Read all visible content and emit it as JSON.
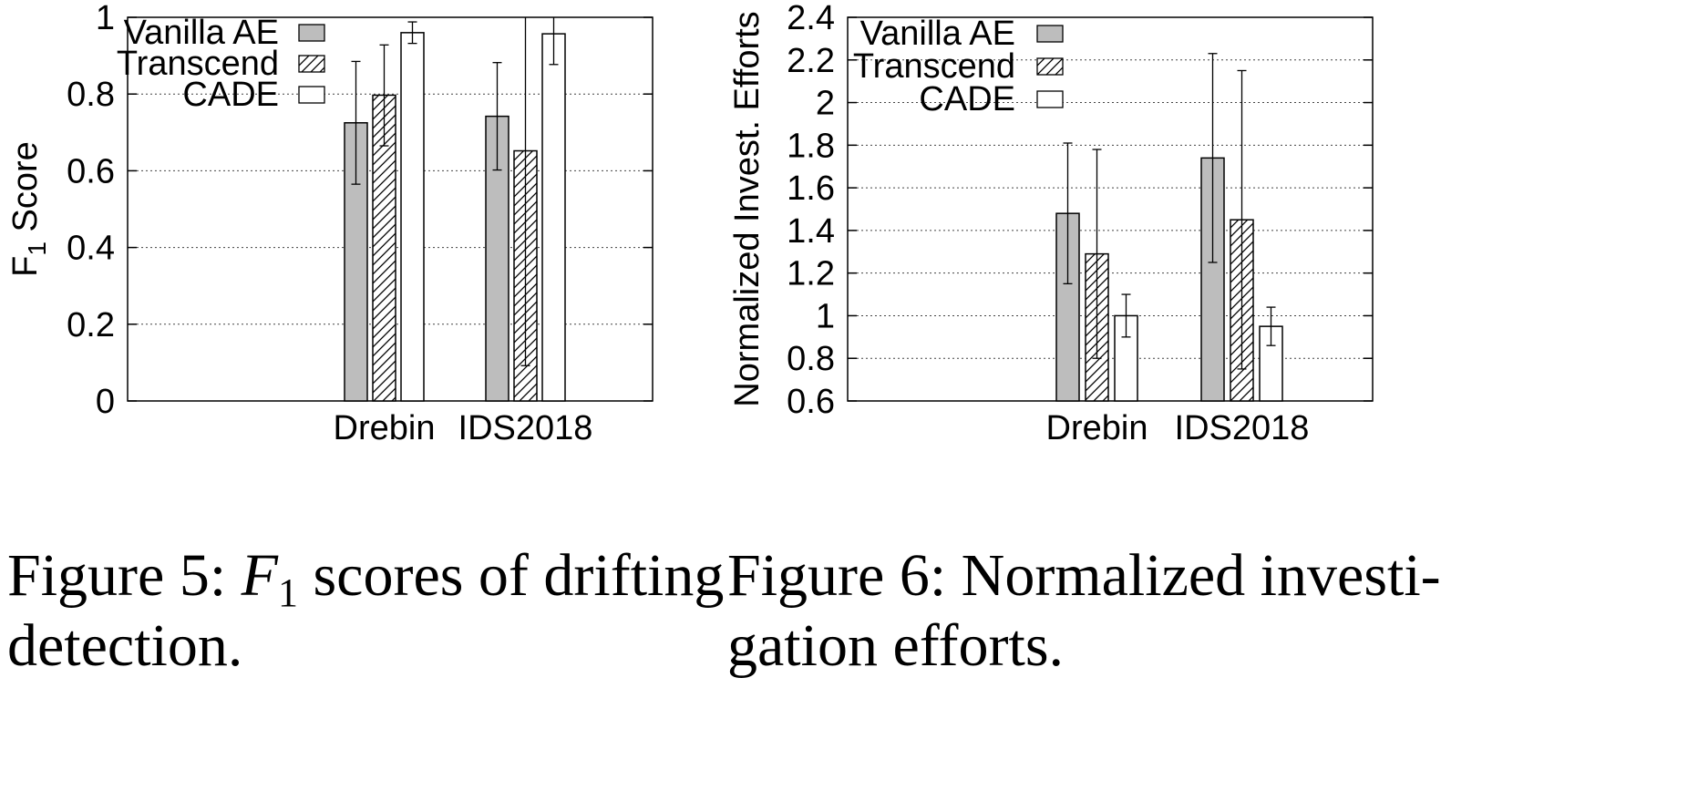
{
  "chart_data": [
    {
      "type": "bar",
      "ylabel_main": "F",
      "ylabel_sub": "1",
      "ylabel_rest": " Score",
      "categories": [
        "Drebin",
        "IDS2018"
      ],
      "ylim": [
        0,
        1
      ],
      "yticks": [
        0,
        0.2,
        0.4,
        0.6,
        0.8,
        1
      ],
      "ytick_labels": [
        "0",
        "0.2",
        "0.4",
        "0.6",
        "0.8",
        "1"
      ],
      "grid": true,
      "legend_position": "top-left",
      "series": [
        {
          "name": "Vanilla AE",
          "pattern": "gray",
          "values": [
            0.725,
            0.742
          ],
          "err_low": [
            0.565,
            0.602
          ],
          "err_high": [
            0.885,
            0.882
          ]
        },
        {
          "name": "Transcend",
          "pattern": "hatch",
          "values": [
            0.797,
            0.652
          ],
          "err_low": [
            0.665,
            0.092
          ],
          "err_high": [
            0.928,
            1.0
          ]
        },
        {
          "name": "CADE",
          "pattern": "white",
          "values": [
            0.96,
            0.957
          ],
          "err_low": [
            0.932,
            0.877
          ],
          "err_high": [
            0.988,
            1.0
          ]
        }
      ]
    },
    {
      "type": "bar",
      "ylabel": "Normalized Invest. Efforts",
      "categories": [
        "Drebin",
        "IDS2018"
      ],
      "ylim": [
        0.6,
        2.4
      ],
      "yticks": [
        0.6,
        0.8,
        1.0,
        1.2,
        1.4,
        1.6,
        1.8,
        2.0,
        2.2,
        2.4
      ],
      "ytick_labels": [
        "0.6",
        "0.8",
        "1",
        "1.2",
        "1.4",
        "1.6",
        "1.8",
        "2",
        "2.2",
        "2.4"
      ],
      "grid": true,
      "legend_position": "top-left",
      "series": [
        {
          "name": "Vanilla AE",
          "pattern": "gray",
          "values": [
            1.48,
            1.74
          ],
          "err_low": [
            1.15,
            1.25
          ],
          "err_high": [
            1.81,
            2.23
          ]
        },
        {
          "name": "Transcend",
          "pattern": "hatch",
          "values": [
            1.29,
            1.45
          ],
          "err_low": [
            0.8,
            0.75
          ],
          "err_high": [
            1.78,
            2.15
          ]
        },
        {
          "name": "CADE",
          "pattern": "white",
          "values": [
            1.0,
            0.95
          ],
          "err_low": [
            0.9,
            0.86
          ],
          "err_high": [
            1.1,
            1.04
          ]
        }
      ]
    }
  ],
  "captions": {
    "fig5_line1_a": "Figure 5: ",
    "fig5_line1_b": "F",
    "fig5_line1_c": "1",
    "fig5_line1_d": " scores of drifting",
    "fig5_line2": "detection.",
    "fig6_line1": "Figure 6: Normalized investi-",
    "fig6_line2": "gation efforts."
  }
}
